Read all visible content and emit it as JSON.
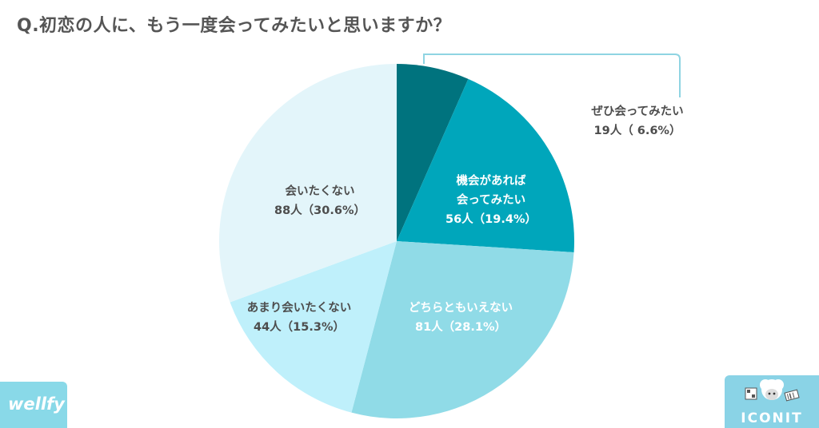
{
  "title": "Q.初恋の人に、もう一度会ってみたいと思いますか？",
  "chart_data": {
    "type": "pie",
    "start": "top",
    "direction": "clockwise",
    "slices": [
      {
        "label_lines": [
          "ぜひ会ってみたい"
        ],
        "value_text": "19人（ 6.6%）",
        "count": 19,
        "percent": 6.6,
        "color": "#00737e",
        "label_color": "dark",
        "callout": true
      },
      {
        "label_lines": [
          "機会があれば",
          "会ってみたい"
        ],
        "value_text": "56人（19.4%）",
        "count": 56,
        "percent": 19.4,
        "color": "#00a6bb",
        "label_color": "light",
        "callout": false
      },
      {
        "label_lines": [
          "どちらともいえない"
        ],
        "value_text": "81人（28.1%）",
        "count": 81,
        "percent": 28.1,
        "color": "#90dbe7",
        "label_color": "light",
        "callout": false
      },
      {
        "label_lines": [
          "あまり会いたくない"
        ],
        "value_text": "44人（15.3%）",
        "count": 44,
        "percent": 15.3,
        "color": "#bff0fb",
        "label_color": "dark",
        "callout": false
      },
      {
        "label_lines": [
          "会いたくない"
        ],
        "value_text": "88人（30.6%）",
        "count": 88,
        "percent": 30.6,
        "color": "#e3f5fa",
        "label_color": "dark",
        "callout": false
      }
    ],
    "callout_line_color": "#8fd4e2"
  },
  "logos": {
    "left": "wellfy",
    "right": "ICONIT"
  }
}
